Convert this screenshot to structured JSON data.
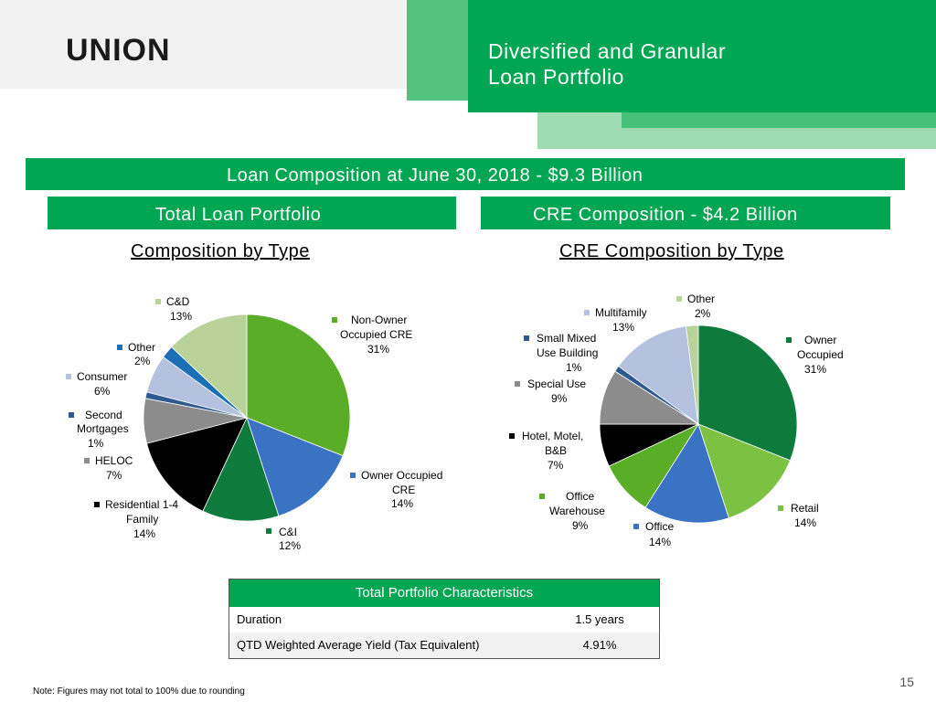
{
  "header": {
    "logo": "UNION",
    "title_line1": "Diversified and Granular",
    "title_line2": "Loan Portfolio"
  },
  "banner": {
    "main": "Loan Composition at June 30, 2018 - $9.3 Billion",
    "left": "Total Loan Portfolio",
    "right": "CRE Composition - $4.2 Billion"
  },
  "headings": {
    "left": "Composition by Type",
    "right": "CRE Composition by Type"
  },
  "colors": {
    "brand_green": "#00a651",
    "dark_green": "#0e7a3c",
    "light_green": "#7dc142"
  },
  "chart_data": [
    {
      "type": "pie",
      "title": "Composition by Type",
      "slices": [
        {
          "label": "Non-Owner Occupied CRE",
          "value": 31,
          "display": "31%",
          "color": "#5aae27"
        },
        {
          "label": "Owner Occupied CRE",
          "value": 14,
          "display": "14%",
          "color": "#3b73c4"
        },
        {
          "label": "C&I",
          "value": 12,
          "display": "12%",
          "color": "#0e7a3c"
        },
        {
          "label": "Residential 1-4 Family",
          "value": 14,
          "display": "14%",
          "color": "#000000"
        },
        {
          "label": "HELOC",
          "value": 7,
          "display": "7%",
          "color": "#8c8c8c"
        },
        {
          "label": "Second Mortgages",
          "value": 1,
          "display": "1%",
          "color": "#2f5a8f"
        },
        {
          "label": "Consumer",
          "value": 6,
          "display": "6%",
          "color": "#b4c2e0"
        },
        {
          "label": "Other",
          "value": 2,
          "display": "2%",
          "color": "#1a6fb5"
        },
        {
          "label": "C&D",
          "value": 13,
          "display": "13%",
          "color": "#b8d29a"
        }
      ],
      "labels": {
        "cd": "C&D",
        "cd_pct": "13%",
        "nooc_1": "Non-Owner",
        "nooc_2": "Occupied CRE",
        "nooc_pct": "31%",
        "other": "Other",
        "other_pct": "2%",
        "consumer": "Consumer",
        "consumer_pct": "6%",
        "second_1": "Second",
        "second_2": "Mortgages",
        "second_pct": "1%",
        "heloc": "HELOC",
        "heloc_pct": "7%",
        "res_1": "Residential 1-4",
        "res_2": "Family",
        "res_pct": "14%",
        "ooc_1": "Owner Occupied",
        "ooc_2": "CRE",
        "ooc_pct": "14%",
        "ci": "C&I",
        "ci_pct": "12%"
      }
    },
    {
      "type": "pie",
      "title": "CRE Composition by Type",
      "slices": [
        {
          "label": "Owner Occupied",
          "value": 31,
          "display": "31%",
          "color": "#0e7a3c"
        },
        {
          "label": "Retail",
          "value": 14,
          "display": "14%",
          "color": "#7dc142"
        },
        {
          "label": "Office",
          "value": 14,
          "display": "14%",
          "color": "#3b73c4"
        },
        {
          "label": "Office Warehouse",
          "value": 9,
          "display": "9%",
          "color": "#5aae27"
        },
        {
          "label": "Hotel, Motel, B&B",
          "value": 7,
          "display": "7%",
          "color": "#000000"
        },
        {
          "label": "Special Use",
          "value": 9,
          "display": "9%",
          "color": "#8c8c8c"
        },
        {
          "label": "Small Mixed Use Building",
          "value": 1,
          "display": "1%",
          "color": "#2f5a8f"
        },
        {
          "label": "Multifamily",
          "value": 13,
          "display": "13%",
          "color": "#b4c2e0"
        },
        {
          "label": "Other",
          "value": 2,
          "display": "2%",
          "color": "#b8d29a"
        }
      ],
      "labels": {
        "other": "Other",
        "other_pct": "2%",
        "multi": "Multifamily",
        "multi_pct": "13%",
        "small_1": "Small Mixed",
        "small_2": "Use Building",
        "small_pct": "1%",
        "owner_1": "Owner",
        "owner_2": "Occupied",
        "owner_pct": "31%",
        "special": "Special Use",
        "special_pct": "9%",
        "hotel_1": "Hotel, Motel,",
        "hotel_2": "B&B",
        "hotel_pct": "7%",
        "ow_1": "Office",
        "ow_2": "Warehouse",
        "ow_pct": "9%",
        "retail": "Retail",
        "retail_pct": "14%",
        "office": "Office",
        "office_pct": "14%"
      }
    }
  ],
  "table": {
    "header": "Total Portfolio Characteristics",
    "rows": [
      {
        "label": "Duration",
        "value": "1.5 years"
      },
      {
        "label": "QTD Weighted Average Yield  (Tax Equivalent)",
        "value": "4.91%"
      }
    ]
  },
  "footer": {
    "note": "Note: Figures may not total to 100% due to rounding",
    "page": "15"
  }
}
